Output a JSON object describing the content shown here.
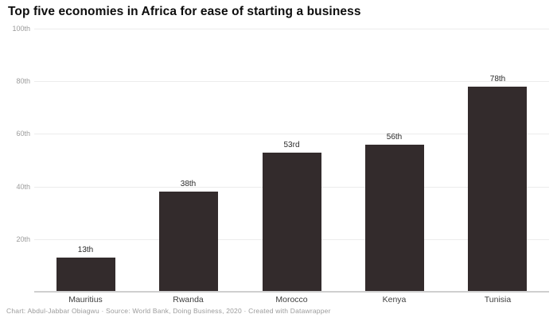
{
  "header": {
    "title": "Top five economies in Africa for ease of starting a business"
  },
  "footer": {
    "text": "Chart: Abdul-Jabbar Obiagwu · Source: World Bank, Doing Business, 2020 · Created with Datawrapper"
  },
  "chart_data": {
    "type": "bar",
    "title": "Top five economies in Africa for ease of starting a business",
    "categories": [
      "Mauritius",
      "Rwanda",
      "Morocco",
      "Kenya",
      "Tunisia"
    ],
    "values": [
      13,
      38,
      53,
      56,
      78
    ],
    "value_labels": [
      "13th",
      "38th",
      "53rd",
      "56th",
      "78th"
    ],
    "xlabel": "",
    "ylabel": "",
    "ylim": [
      0,
      100
    ],
    "grid": true,
    "legend": "none",
    "y_ticks": [
      {
        "value": 20,
        "label": "20th"
      },
      {
        "value": 40,
        "label": "40th"
      },
      {
        "value": 60,
        "label": "60th"
      },
      {
        "value": 80,
        "label": "80th"
      },
      {
        "value": 100,
        "label": "100th"
      }
    ],
    "bar_color": "#332b2c",
    "gridline_color": "#ececec",
    "baseline_color": "#cfcfcf",
    "tick_label_color": "#9b9b9b",
    "value_label_color": "#2b2b2b",
    "category_label_color": "#3f3f3f"
  }
}
